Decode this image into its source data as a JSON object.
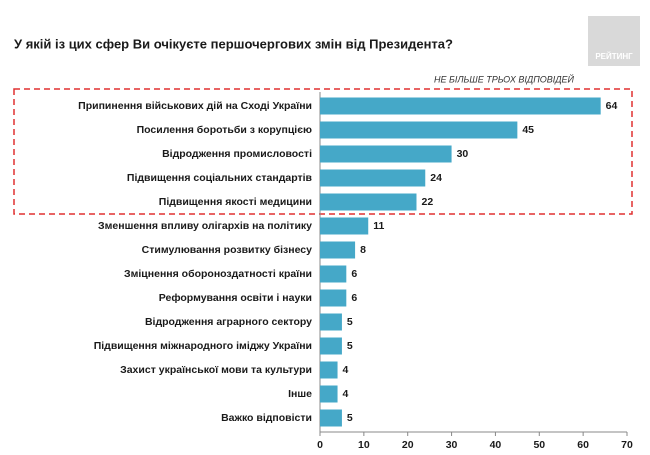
{
  "chart_data": {
    "type": "bar",
    "orientation": "horizontal",
    "title": "У якій із цих сфер Ви очікуєте першочергових змін від Президента?",
    "subtitle": "НЕ БІЛЬШЕ ТРЬОХ ВІДПОВІДЕЙ",
    "logo": "РЕЙТИНГ",
    "categories": [
      "Припинення військових дій на Сході України",
      "Посилення боротьби з корупцією",
      "Відродження промисловості",
      "Підвищення соціальних стандартів",
      "Підвищення якості медицини",
      "Зменшення впливу олігархів на політику",
      "Стимулювання розвитку бізнесу",
      "Зміцнення обороноздатності країни",
      "Реформування освіти і науки",
      "Відродження аграрного сектору",
      "Підвищення міжнародного іміджу України",
      "Захист української мови та культури",
      "Інше",
      "Важко відповісти"
    ],
    "values": [
      64,
      45,
      30,
      24,
      22,
      11,
      8,
      6,
      6,
      5,
      5,
      4,
      4,
      5
    ],
    "color": "#45a8c8",
    "xlim": [
      0,
      70
    ],
    "xticks": [
      0,
      10,
      20,
      30,
      40,
      50,
      60,
      70
    ]
  }
}
